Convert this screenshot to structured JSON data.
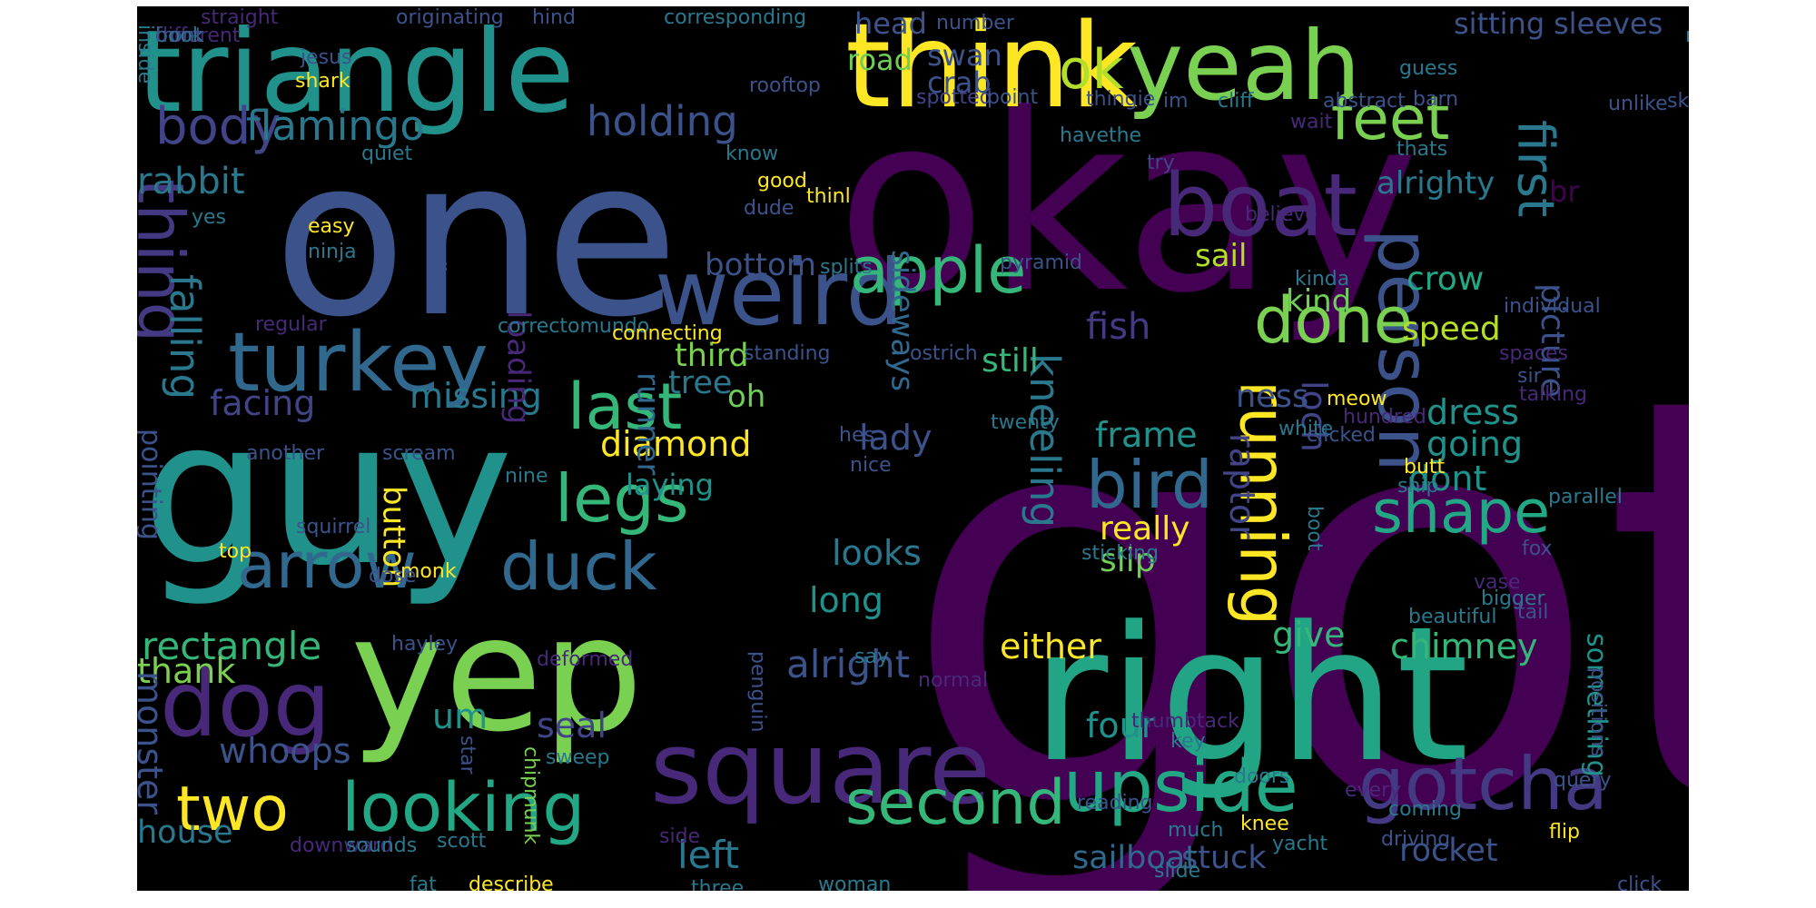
{
  "words": [
    {
      "text": "got",
      "color": "#440154"
    },
    {
      "text": "okay",
      "color": "#440154"
    },
    {
      "text": "one",
      "color": "#3b528b"
    },
    {
      "text": "guy",
      "color": "#21918c"
    },
    {
      "text": "right",
      "color": "#21a585"
    },
    {
      "text": "yep",
      "color": "#7ad151"
    },
    {
      "text": "triangle",
      "color": "#21918c"
    },
    {
      "text": "think",
      "color": "#fde725"
    },
    {
      "text": "yeah",
      "color": "#7ad151"
    },
    {
      "text": "square",
      "color": "#482878"
    },
    {
      "text": "weird",
      "color": "#3b528b"
    },
    {
      "text": "turkey",
      "color": "#31688e"
    },
    {
      "text": "dog",
      "color": "#482878"
    },
    {
      "text": "boat",
      "color": "#482878"
    },
    {
      "text": "gotcha",
      "color": "#443983"
    },
    {
      "text": "upside",
      "color": "#22a884"
    },
    {
      "text": "looking",
      "color": "#22a884"
    },
    {
      "text": "duck",
      "color": "#31688e"
    },
    {
      "text": "apple",
      "color": "#35b779"
    },
    {
      "text": "arrow",
      "color": "#31688e"
    },
    {
      "text": "person",
      "color": "#3b528b"
    },
    {
      "text": "bird",
      "color": "#31688e"
    },
    {
      "text": "second",
      "color": "#35b779"
    },
    {
      "text": "shape",
      "color": "#22a884"
    },
    {
      "text": "done",
      "color": "#7ad151"
    },
    {
      "text": "running",
      "color": "#fde725"
    },
    {
      "text": "legs",
      "color": "#35b779"
    },
    {
      "text": "last",
      "color": "#35b779"
    },
    {
      "text": "two",
      "color": "#fde725"
    },
    {
      "text": "feet",
      "color": "#7ad151"
    },
    {
      "text": "ok",
      "color": "#b5de2b"
    },
    {
      "text": "body",
      "color": "#414487"
    },
    {
      "text": "flamingo",
      "color": "#2a788e"
    },
    {
      "text": "holding",
      "color": "#3b528b"
    },
    {
      "text": "thing",
      "color": "#443983"
    },
    {
      "text": "falling",
      "color": "#2a788e"
    },
    {
      "text": "first",
      "color": "#2a788e"
    },
    {
      "text": "rabbit",
      "color": "#2a788e"
    },
    {
      "text": "kneeling",
      "color": "#2a788e"
    },
    {
      "text": "rectangle",
      "color": "#35b779"
    },
    {
      "text": "alright",
      "color": "#3b528b"
    },
    {
      "text": "left",
      "color": "#2a788e"
    },
    {
      "text": "rocket",
      "color": "#3b528b"
    },
    {
      "text": "stuck",
      "color": "#3b528b"
    },
    {
      "text": "sailboat",
      "color": "#31688e"
    },
    {
      "text": "missing",
      "color": "#2a788e"
    },
    {
      "text": "diamond",
      "color": "#fde725"
    },
    {
      "text": "facing",
      "color": "#414487"
    },
    {
      "text": "um",
      "color": "#21918c"
    },
    {
      "text": "seal",
      "color": "#414487"
    },
    {
      "text": "whoops",
      "color": "#3b528b"
    },
    {
      "text": "house",
      "color": "#2a788e"
    },
    {
      "text": "thank",
      "color": "#7ad151"
    },
    {
      "text": "monster",
      "color": "#3b528b"
    },
    {
      "text": "chimney",
      "color": "#35b779"
    },
    {
      "text": "four",
      "color": "#21918c"
    },
    {
      "text": "either",
      "color": "#fde725"
    },
    {
      "text": "give",
      "color": "#35b779"
    },
    {
      "text": "frame",
      "color": "#21918c"
    },
    {
      "text": "really",
      "color": "#fde725"
    },
    {
      "text": "slip",
      "color": "#6ece58"
    },
    {
      "text": "looks",
      "color": "#2a788e"
    },
    {
      "text": "long",
      "color": "#21918c"
    },
    {
      "text": "lady",
      "color": "#3b528b"
    },
    {
      "text": "raptor",
      "color": "#414487"
    },
    {
      "text": "loch",
      "color": "#414487"
    },
    {
      "text": "dress",
      "color": "#21918c"
    },
    {
      "text": "going",
      "color": "#21918c"
    },
    {
      "text": "dont",
      "color": "#21918c"
    },
    {
      "text": "picture",
      "color": "#3b528b"
    },
    {
      "text": "speed",
      "color": "#b5de2b"
    },
    {
      "text": "crow",
      "color": "#22a884"
    },
    {
      "text": "kind",
      "color": "#6ece58"
    },
    {
      "text": "fish",
      "color": "#443983"
    },
    {
      "text": "sail",
      "color": "#b5de2b"
    },
    {
      "text": "ness",
      "color": "#3b528b"
    },
    {
      "text": "still",
      "color": "#35b779"
    },
    {
      "text": "third",
      "color": "#7ad151"
    },
    {
      "text": "tree",
      "color": "#2a788e"
    },
    {
      "text": "oh",
      "color": "#6ece58"
    },
    {
      "text": "bottom",
      "color": "#3b528b"
    },
    {
      "text": "sideways",
      "color": "#31688e"
    },
    {
      "text": "crab",
      "color": "#3b528b"
    },
    {
      "text": "swan",
      "color": "#3b528b"
    },
    {
      "text": "road",
      "color": "#6ece58"
    },
    {
      "text": "head",
      "color": "#3b528b"
    },
    {
      "text": "alrighty",
      "color": "#2a788e"
    },
    {
      "text": "br",
      "color": "#440154"
    },
    {
      "text": "loading",
      "color": "#482878"
    },
    {
      "text": "runner",
      "color": "#31688e"
    },
    {
      "text": "button",
      "color": "#fde725"
    },
    {
      "text": "laying",
      "color": "#21918c"
    },
    {
      "text": "pointing",
      "color": "#3b528b"
    },
    {
      "text": "sitting",
      "color": "#3b528b"
    },
    {
      "text": "sleeves",
      "color": "#3b528b"
    },
    {
      "text": "something",
      "color": "#21918c"
    },
    {
      "text": "straight",
      "color": "#482878"
    },
    {
      "text": "originating",
      "color": "#3b528b"
    },
    {
      "text": "hind",
      "color": "#3b528b"
    },
    {
      "text": "corresponding",
      "color": "#2a788e"
    },
    {
      "text": "number",
      "color": "#3b528b"
    },
    {
      "text": "now",
      "color": "#2a788e"
    },
    {
      "text": "jesus",
      "color": "#3b528b"
    },
    {
      "text": "shark",
      "color": "#fde725"
    },
    {
      "text": "inside",
      "color": "#2a788e"
    },
    {
      "text": "rooftop",
      "color": "#3b528b"
    },
    {
      "text": "spotted",
      "color": "#414487"
    },
    {
      "text": "point",
      "color": "#3b528b"
    },
    {
      "text": "thingie",
      "color": "#3b528b"
    },
    {
      "text": "im",
      "color": "#3b528b"
    },
    {
      "text": "cliff",
      "color": "#2a788e"
    },
    {
      "text": "abstract",
      "color": "#3b528b"
    },
    {
      "text": "barn",
      "color": "#3b528b"
    },
    {
      "text": "guess",
      "color": "#2a788e"
    },
    {
      "text": "unlike",
      "color": "#3b528b"
    },
    {
      "text": "skinny",
      "color": "#3b528b"
    },
    {
      "text": "wait",
      "color": "#482878"
    },
    {
      "text": "quiet",
      "color": "#2a788e"
    },
    {
      "text": "know",
      "color": "#2a788e"
    },
    {
      "text": "havethe",
      "color": "#2a788e"
    },
    {
      "text": "try",
      "color": "#414487"
    },
    {
      "text": "thats",
      "color": "#2a788e"
    },
    {
      "text": "good",
      "color": "#fde725"
    },
    {
      "text": "thinl",
      "color": "#fde725"
    },
    {
      "text": "dude",
      "color": "#3b528b"
    },
    {
      "text": "yes",
      "color": "#2a788e"
    },
    {
      "text": "easy",
      "color": "#fde725"
    },
    {
      "text": "ninja",
      "color": "#2a788e"
    },
    {
      "text": "speedboat",
      "color": "#3b528b"
    },
    {
      "text": "splits",
      "color": "#2a788e"
    },
    {
      "text": "pyramid",
      "color": "#3b528b"
    },
    {
      "text": "believe",
      "color": "#482878"
    },
    {
      "text": "kinda",
      "color": "#2a788e"
    },
    {
      "text": "individual",
      "color": "#3b528b"
    },
    {
      "text": "regular",
      "color": "#482878"
    },
    {
      "text": "correctomundo",
      "color": "#2a788e"
    },
    {
      "text": "connecting",
      "color": "#fde725"
    },
    {
      "text": "standing",
      "color": "#3b528b"
    },
    {
      "text": "ostrich",
      "color": "#3b528b"
    },
    {
      "text": "spaces",
      "color": "#482878"
    },
    {
      "text": "sir",
      "color": "#3b528b"
    },
    {
      "text": "talking",
      "color": "#482878"
    },
    {
      "text": "meow",
      "color": "#fde725"
    },
    {
      "text": "hundred",
      "color": "#482878"
    },
    {
      "text": "twenty",
      "color": "#2a788e"
    },
    {
      "text": "white",
      "color": "#2a788e"
    },
    {
      "text": "hes",
      "color": "#3b528b"
    },
    {
      "text": "clicked",
      "color": "#3b528b"
    },
    {
      "text": "another",
      "color": "#3b528b"
    },
    {
      "text": "scream",
      "color": "#3b528b"
    },
    {
      "text": "nine",
      "color": "#2a788e"
    },
    {
      "text": "nice",
      "color": "#3b528b"
    },
    {
      "text": "butt",
      "color": "#fde725"
    },
    {
      "text": "ship",
      "color": "#2a788e"
    },
    {
      "text": "parallel",
      "color": "#2a788e"
    },
    {
      "text": "boot",
      "color": "#2a788e"
    },
    {
      "text": "squirrel",
      "color": "#3b528b"
    },
    {
      "text": "top",
      "color": "#fde725"
    },
    {
      "text": "sticking",
      "color": "#2a788e"
    },
    {
      "text": "fox",
      "color": "#3b528b"
    },
    {
      "text": "monk",
      "color": "#fde725"
    },
    {
      "text": "dose",
      "color": "#3b528b"
    },
    {
      "text": "vase",
      "color": "#482878"
    },
    {
      "text": "bigger",
      "color": "#2a788e"
    },
    {
      "text": "tail",
      "color": "#3b528b"
    },
    {
      "text": "beautiful",
      "color": "#2a788e"
    },
    {
      "text": "hayley",
      "color": "#3b528b"
    },
    {
      "text": "penguin",
      "color": "#3b528b"
    },
    {
      "text": "deformed",
      "color": "#482878"
    },
    {
      "text": "say",
      "color": "#2a788e"
    },
    {
      "text": "normal",
      "color": "#482878"
    },
    {
      "text": "positions",
      "color": "#3b528b"
    },
    {
      "text": "thumbtack",
      "color": "#482878"
    },
    {
      "text": "key",
      "color": "#2a788e"
    },
    {
      "text": "star",
      "color": "#3b528b"
    },
    {
      "text": "sweep",
      "color": "#2a788e"
    },
    {
      "text": "chipmunk",
      "color": "#7ad151"
    },
    {
      "text": "doors",
      "color": "#2a788e"
    },
    {
      "text": "query",
      "color": "#3b528b"
    },
    {
      "text": "every",
      "color": "#482878"
    },
    {
      "text": "reading",
      "color": "#3b528b"
    },
    {
      "text": "coming",
      "color": "#2a788e"
    },
    {
      "text": "knee",
      "color": "#fde725"
    },
    {
      "text": "much",
      "color": "#2a788e"
    },
    {
      "text": "driving",
      "color": "#3b528b"
    },
    {
      "text": "scott",
      "color": "#2a788e"
    },
    {
      "text": "downward",
      "color": "#482878"
    },
    {
      "text": "sounds",
      "color": "#2a788e"
    },
    {
      "text": "side",
      "color": "#482878"
    },
    {
      "text": "yacht",
      "color": "#2a788e"
    },
    {
      "text": "flip",
      "color": "#fde725"
    },
    {
      "text": "slide",
      "color": "#2a788e"
    },
    {
      "text": "fat",
      "color": "#2a788e"
    },
    {
      "text": "describe",
      "color": "#fde725"
    },
    {
      "text": "woman",
      "color": "#2a788e"
    },
    {
      "text": "three",
      "color": "#2a788e"
    },
    {
      "text": "click",
      "color": "#3b528b"
    },
    {
      "text": "different",
      "color": "#482878"
    },
    {
      "text": "book",
      "color": "#2a788e"
    },
    {
      "text": "front",
      "color": "#3b528b"
    }
  ]
}
